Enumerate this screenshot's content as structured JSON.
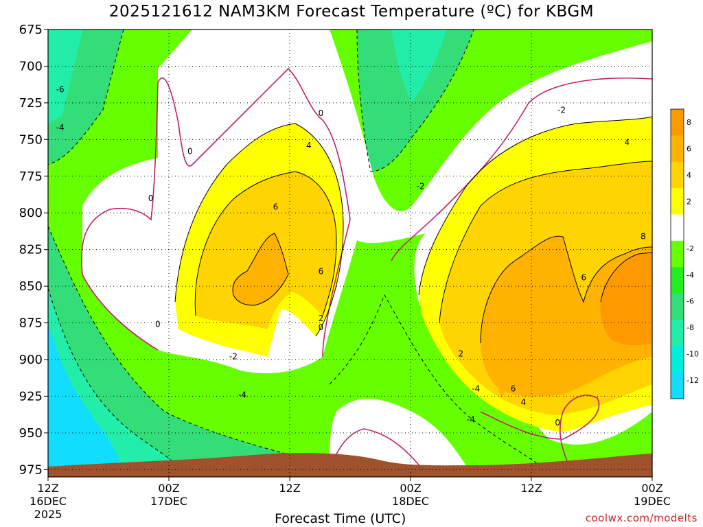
{
  "title": "2025121612 NAM3KM Forecast Temperature (ºC) for KBGM",
  "x_axis_title": "Forecast Time (UTC)",
  "credit": "coolwx.com/modelts",
  "chart_data": {
    "type": "heatmap",
    "title": "2025121612 NAM3KM Forecast Temperature (ºC) for KBGM",
    "xlabel": "Forecast Time (UTC)",
    "ylabel": "",
    "y_ticks": [
      "675",
      "700",
      "725",
      "750",
      "775",
      "800",
      "825",
      "850",
      "875",
      "900",
      "925",
      "950",
      "975"
    ],
    "y_range": [
      675,
      980
    ],
    "x_ticks": [
      {
        "time": "12Z",
        "date": "16DEC",
        "year": "2025"
      },
      {
        "time": "00Z",
        "date": "17DEC",
        "year": ""
      },
      {
        "time": "12Z",
        "date": "",
        "year": ""
      },
      {
        "time": "00Z",
        "date": "18DEC",
        "year": ""
      },
      {
        "time": "12Z",
        "date": "",
        "year": ""
      },
      {
        "time": "00Z",
        "date": "19DEC",
        "year": ""
      }
    ],
    "x_range_hours": [
      0,
      60
    ],
    "grid": true,
    "colorbar": {
      "placement": "right",
      "labels": [
        "8",
        "6",
        "4",
        "2",
        "-2",
        "-4",
        "-6",
        "-8",
        "-10",
        "-12"
      ],
      "colors": [
        "#ff9900",
        "#ffb300",
        "#ffd400",
        "#ffff00",
        "#ffffff",
        "#66ff00",
        "#22ee22",
        "#33dd77",
        "#22eeaa",
        "#00eedd",
        "#11ddff"
      ]
    },
    "contour_labels": [
      {
        "text": "-6",
        "hour": 1.2,
        "p": 716
      },
      {
        "text": "-4",
        "hour": 1.2,
        "p": 742
      },
      {
        "text": "0",
        "hour": 14.1,
        "p": 758
      },
      {
        "text": "0",
        "hour": 10.2,
        "p": 790
      },
      {
        "text": "0",
        "hour": 10.9,
        "p": 876
      },
      {
        "text": "-2",
        "hour": 18.4,
        "p": 898
      },
      {
        "text": "-4",
        "hour": 19.3,
        "p": 924
      },
      {
        "text": "4",
        "hour": 25.9,
        "p": 754
      },
      {
        "text": "6",
        "hour": 22.6,
        "p": 796
      },
      {
        "text": "6",
        "hour": 27.1,
        "p": 840
      },
      {
        "text": "0",
        "hour": 27.1,
        "p": 732
      },
      {
        "text": "2",
        "hour": 27.1,
        "p": 872
      },
      {
        "text": "0",
        "hour": 27.1,
        "p": 878
      },
      {
        "text": "-2",
        "hour": 37.0,
        "p": 782
      },
      {
        "text": "2",
        "hour": 41.0,
        "p": 896
      },
      {
        "text": "-4",
        "hour": 42.5,
        "p": 920
      },
      {
        "text": "-4",
        "hour": 42.0,
        "p": 941
      },
      {
        "text": "6",
        "hour": 46.2,
        "p": 920
      },
      {
        "text": "4",
        "hour": 47.2,
        "p": 929
      },
      {
        "text": "0",
        "hour": 50.6,
        "p": 943
      },
      {
        "text": "-2",
        "hour": 51.0,
        "p": 730
      },
      {
        "text": "4",
        "hour": 57.5,
        "p": 752
      },
      {
        "text": "6",
        "hour": 53.2,
        "p": 844
      },
      {
        "text": "8",
        "hour": 59.1,
        "p": 816
      }
    ],
    "terrain_color": "#a0522d"
  }
}
